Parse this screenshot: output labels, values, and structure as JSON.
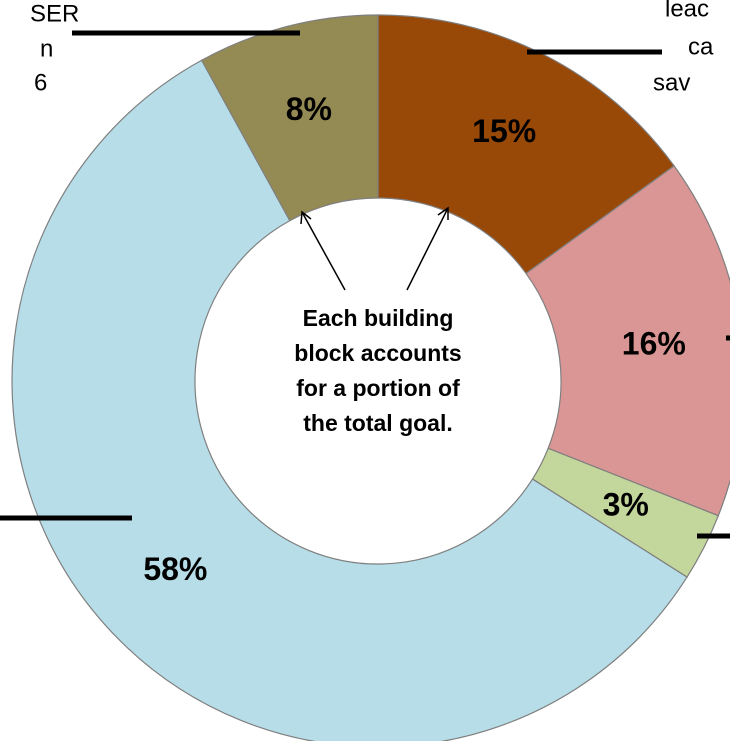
{
  "chart_data": {
    "type": "pie",
    "donut": true,
    "categories": [
      null,
      null,
      null,
      null,
      null
    ],
    "values": [
      15,
      16,
      3,
      58,
      8
    ],
    "value_labels": [
      "15%",
      "16%",
      "3%",
      "58%",
      "8%"
    ],
    "colors": [
      "#984807",
      "#d99694",
      "#c3d69b",
      "#b7dee8",
      "#948a54"
    ],
    "center_text": [
      "Each building",
      "block accounts",
      "for a portion of",
      "the total goal."
    ],
    "annotations": [
      "SER",
      "n",
      "6",
      "leac",
      "ca",
      "sav"
    ]
  }
}
